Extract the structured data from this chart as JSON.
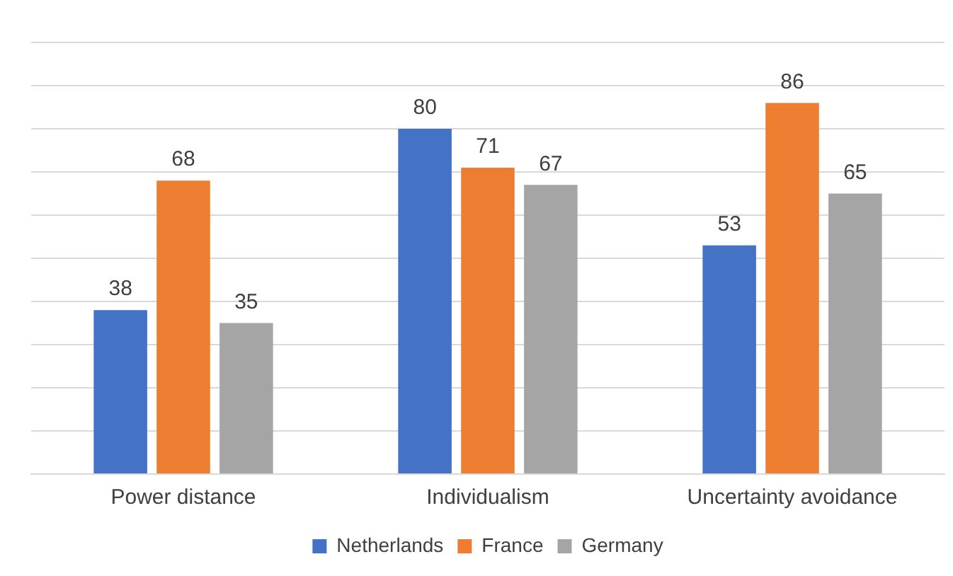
{
  "chart_data": {
    "type": "bar",
    "categories": [
      "Power distance",
      "Individualism",
      "Uncertainty avoidance"
    ],
    "series": [
      {
        "name": "Netherlands",
        "color": "#4472c4",
        "values": [
          38,
          80,
          53
        ]
      },
      {
        "name": "France",
        "color": "#ed7d31",
        "values": [
          68,
          71,
          86
        ]
      },
      {
        "name": "Germany",
        "color": "#a5a5a5",
        "values": [
          35,
          67,
          65
        ]
      }
    ],
    "ylim": [
      0,
      100
    ],
    "yticks": [
      0,
      10,
      20,
      30,
      40,
      50,
      60,
      70,
      80,
      90,
      100
    ],
    "grid": "y",
    "tick_labels": "x",
    "legend": "bottom",
    "data_labels": true
  }
}
